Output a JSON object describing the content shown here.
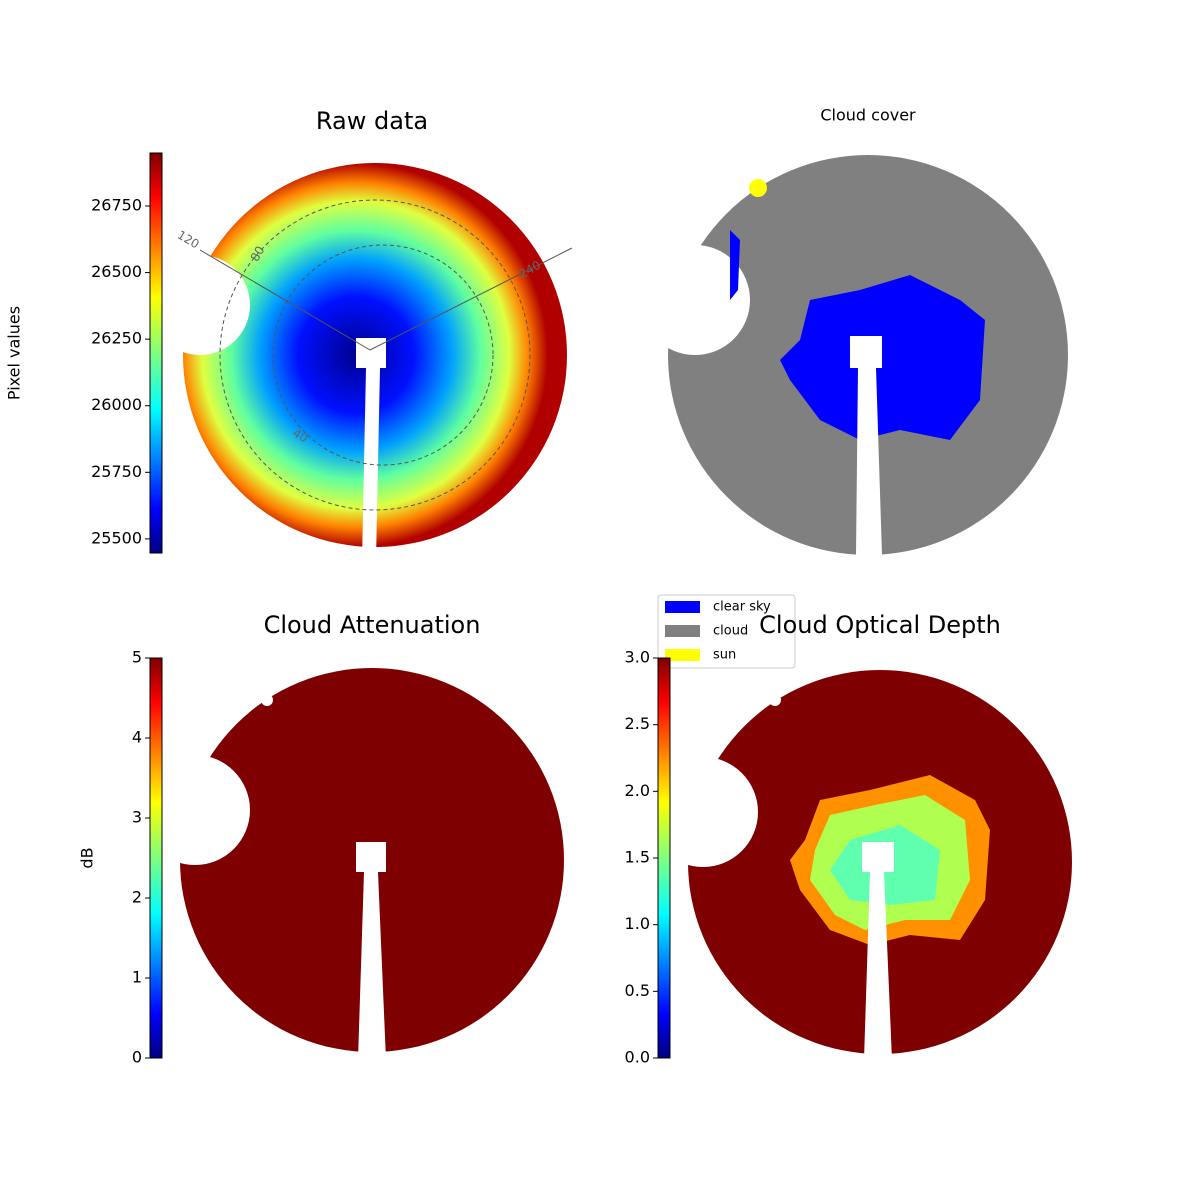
{
  "chart_data": [
    {
      "type": "image",
      "title": "Raw data",
      "colorbar": {
        "label": "Pixel values",
        "lim": [
          25447,
          26949
        ],
        "ticks": [
          25500,
          25750,
          26000,
          26250,
          26500,
          26750
        ]
      },
      "polar_labels": [
        "120",
        "80",
        "240",
        "40"
      ]
    },
    {
      "type": "image",
      "title": "Cloud cover",
      "legend": [
        {
          "name": "clear sky",
          "color": "#0000ff"
        },
        {
          "name": "cloud",
          "color": "#808080"
        },
        {
          "name": "sun",
          "color": "#ffff00"
        }
      ]
    },
    {
      "type": "image",
      "title": "Cloud Attenuation",
      "colorbar": {
        "label": "dB",
        "lim": [
          0,
          5
        ],
        "ticks": [
          0,
          1,
          2,
          3,
          4,
          5
        ]
      }
    },
    {
      "type": "image",
      "title": "Cloud Optical Depth",
      "colorbar": {
        "lim": [
          0,
          3
        ],
        "ticks": [
          {
            "value": 0,
            "label": "0.0"
          },
          0.5,
          {
            "value": 1,
            "label": "1.0"
          },
          1.5,
          {
            "value": 2,
            "label": "2.0"
          },
          2.5,
          {
            "value": 3,
            "label": "3.0"
          }
        ]
      }
    }
  ]
}
